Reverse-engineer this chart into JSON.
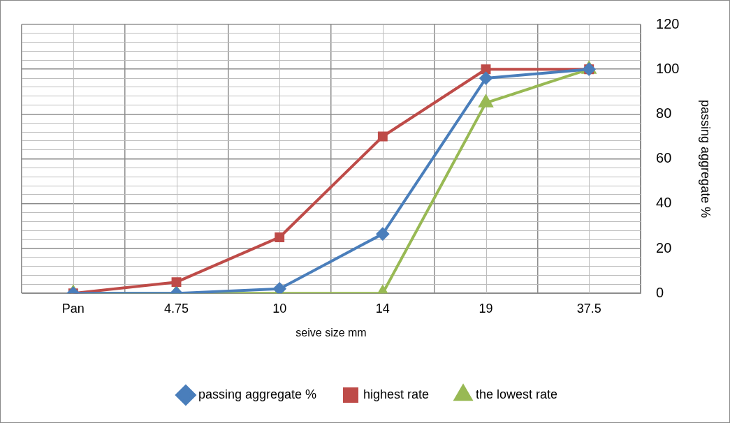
{
  "chart_data": {
    "type": "line",
    "categories": [
      "Pan",
      "4.75",
      "10",
      "14",
      "19",
      "37.5"
    ],
    "xlabel": "seive size mm",
    "ylabel": "passing aggregate %",
    "series": [
      {
        "name": "passing aggregate %",
        "color": "#4a7ebb",
        "marker": "diamond",
        "values": [
          0,
          0,
          2,
          26.5,
          96,
          100
        ]
      },
      {
        "name": "highest rate",
        "color": "#be4b48",
        "marker": "square",
        "values": [
          0,
          5,
          25,
          70,
          100,
          100
        ]
      },
      {
        "name": "the lowest rate",
        "color": "#98b954",
        "marker": "triangle",
        "values": [
          0,
          0,
          0,
          0,
          85,
          100
        ]
      }
    ],
    "ylim": [
      0,
      120
    ],
    "yticks": [
      0,
      {
        "value": 4,
        "label": null
      },
      {
        "value": 8,
        "label": null
      },
      {
        "value": 12,
        "label": null
      },
      {
        "value": 16,
        "label": null
      },
      20,
      {
        "value": 24,
        "label": null
      },
      {
        "value": 28,
        "label": null
      },
      {
        "value": 32,
        "label": null
      },
      {
        "value": 36,
        "label": null
      },
      40,
      {
        "value": 44,
        "label": null
      },
      {
        "value": 48,
        "label": null
      },
      {
        "value": 52,
        "label": null
      },
      {
        "value": 56,
        "label": null
      },
      60,
      {
        "value": 64,
        "label": null
      },
      {
        "value": 68,
        "label": null
      },
      {
        "value": 72,
        "label": null
      },
      {
        "value": 76,
        "label": null
      },
      80,
      {
        "value": 84,
        "label": null
      },
      {
        "value": 88,
        "label": null
      },
      {
        "value": 92,
        "label": null
      },
      {
        "value": 96,
        "label": null
      },
      100,
      {
        "value": 104,
        "label": null
      },
      {
        "value": 108,
        "label": null
      },
      {
        "value": 112,
        "label": null
      },
      {
        "value": 116,
        "label": null
      },
      120
    ],
    "grid": true,
    "legend": "bottom"
  }
}
